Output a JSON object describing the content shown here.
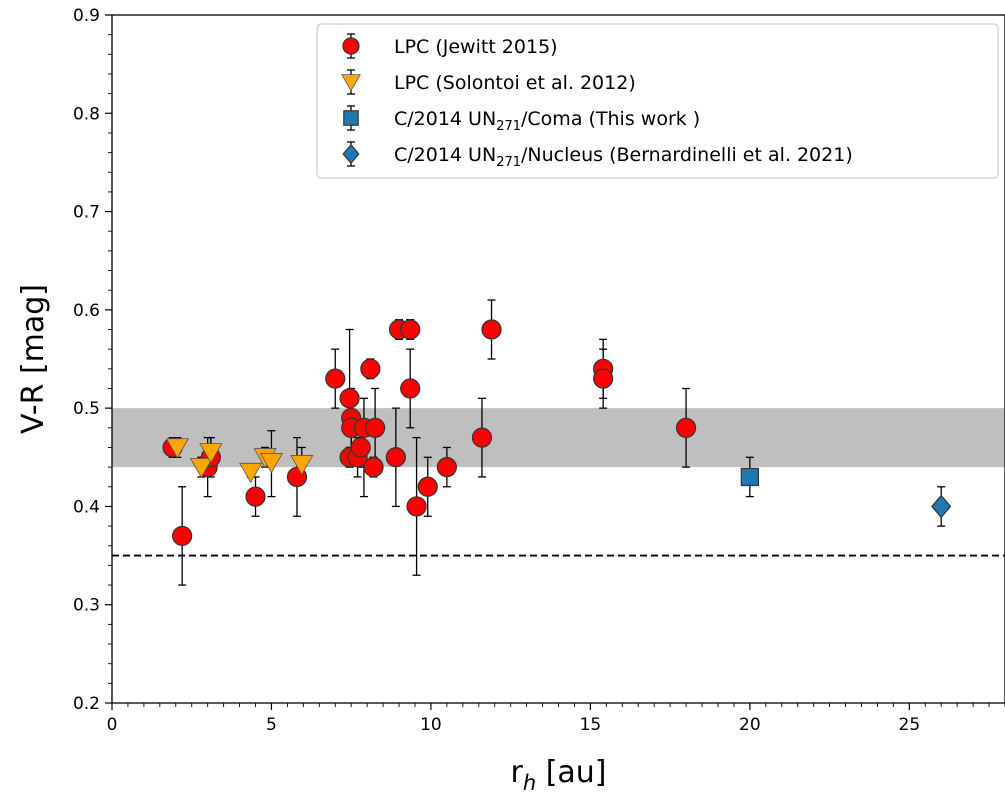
{
  "chart_data": {
    "type": "scatter",
    "xlabel": "r",
    "xlabel_sub": "h",
    "xlabel_unit": " [au]",
    "ylabel": "V-R [mag]",
    "xlim": [
      0,
      28
    ],
    "ylim": [
      0.2,
      0.9
    ],
    "xticks": [
      0,
      5,
      10,
      15,
      20,
      25
    ],
    "yticks": [
      0.2,
      0.3,
      0.4,
      0.5,
      0.6,
      0.7,
      0.8,
      0.9
    ],
    "x_minor_step": 0.5,
    "y_minor_step": 0.02,
    "grid": false,
    "legend_position": "top-right",
    "shaded_band": {
      "y_min": 0.44,
      "y_max": 0.5,
      "color": "#bfbfbf"
    },
    "reference_line": {
      "y": 0.35,
      "style": "dashed",
      "color": "#000000"
    },
    "series": [
      {
        "name": "LPC (Jewitt 2015)",
        "legend_label": {
          "pre": "LPC (Jewitt 2015)",
          "sub": "",
          "post": ""
        },
        "marker": "circle",
        "color": "#ff0000",
        "points": [
          {
            "x": 1.9,
            "y": 0.46,
            "lo": 0.45,
            "hi": 0.47
          },
          {
            "x": 2.2,
            "y": 0.37,
            "lo": 0.32,
            "hi": 0.42
          },
          {
            "x": 3.0,
            "y": 0.44,
            "lo": 0.41,
            "hi": 0.47
          },
          {
            "x": 3.1,
            "y": 0.45,
            "lo": 0.43,
            "hi": 0.47
          },
          {
            "x": 4.5,
            "y": 0.41,
            "lo": 0.39,
            "hi": 0.43
          },
          {
            "x": 5.8,
            "y": 0.43,
            "lo": 0.39,
            "hi": 0.47
          },
          {
            "x": 7.0,
            "y": 0.53,
            "lo": 0.5,
            "hi": 0.56
          },
          {
            "x": 7.45,
            "y": 0.51,
            "lo": 0.48,
            "hi": 0.58
          },
          {
            "x": 7.5,
            "y": 0.49,
            "lo": 0.46,
            "hi": 0.52
          },
          {
            "x": 7.5,
            "y": 0.48,
            "lo": 0.45,
            "hi": 0.51
          },
          {
            "x": 7.45,
            "y": 0.45,
            "lo": 0.44,
            "hi": 0.46
          },
          {
            "x": 7.7,
            "y": 0.45,
            "lo": 0.43,
            "hi": 0.47
          },
          {
            "x": 7.8,
            "y": 0.46,
            "lo": 0.44,
            "hi": 0.48
          },
          {
            "x": 7.9,
            "y": 0.48,
            "lo": 0.41,
            "hi": 0.51
          },
          {
            "x": 8.1,
            "y": 0.54,
            "lo": 0.53,
            "hi": 0.55
          },
          {
            "x": 8.2,
            "y": 0.44,
            "lo": 0.43,
            "hi": 0.45
          },
          {
            "x": 8.25,
            "y": 0.48,
            "lo": 0.44,
            "hi": 0.52
          },
          {
            "x": 8.9,
            "y": 0.45,
            "lo": 0.4,
            "hi": 0.5
          },
          {
            "x": 9.0,
            "y": 0.58,
            "lo": 0.57,
            "hi": 0.59
          },
          {
            "x": 9.35,
            "y": 0.58,
            "lo": 0.57,
            "hi": 0.59
          },
          {
            "x": 9.35,
            "y": 0.52,
            "lo": 0.48,
            "hi": 0.56
          },
          {
            "x": 9.55,
            "y": 0.4,
            "lo": 0.33,
            "hi": 0.47
          },
          {
            "x": 9.9,
            "y": 0.42,
            "lo": 0.39,
            "hi": 0.45
          },
          {
            "x": 10.5,
            "y": 0.44,
            "lo": 0.42,
            "hi": 0.46
          },
          {
            "x": 11.6,
            "y": 0.47,
            "lo": 0.43,
            "hi": 0.51
          },
          {
            "x": 11.9,
            "y": 0.58,
            "lo": 0.55,
            "hi": 0.61
          },
          {
            "x": 15.4,
            "y": 0.54,
            "lo": 0.51,
            "hi": 0.57
          },
          {
            "x": 15.4,
            "y": 0.53,
            "lo": 0.5,
            "hi": 0.56
          },
          {
            "x": 18.0,
            "y": 0.48,
            "lo": 0.44,
            "hi": 0.52
          }
        ]
      },
      {
        "name": "LPC (Solontoi et al. 2012)",
        "legend_label": {
          "pre": "LPC (Solontoi et al. 2012)",
          "sub": "",
          "post": ""
        },
        "marker": "triangle-down",
        "color": "#ffa500",
        "points": [
          {
            "x": 2.05,
            "y": 0.46,
            "lo": 0.45,
            "hi": 0.47
          },
          {
            "x": 2.8,
            "y": 0.44,
            "lo": 0.43,
            "hi": 0.45
          },
          {
            "x": 3.1,
            "y": 0.455,
            "lo": 0.44,
            "hi": 0.47
          },
          {
            "x": 4.35,
            "y": 0.435,
            "lo": 0.43,
            "hi": 0.44
          },
          {
            "x": 4.8,
            "y": 0.45,
            "lo": 0.44,
            "hi": 0.46
          },
          {
            "x": 5.0,
            "y": 0.445,
            "lo": 0.41,
            "hi": 0.477
          },
          {
            "x": 5.95,
            "y": 0.443,
            "lo": 0.43,
            "hi": 0.46
          }
        ]
      },
      {
        "name": "C/2014 UN271/Coma (This work )",
        "legend_label": {
          "pre": "C/2014 UN",
          "sub": "271",
          "post": "/Coma (This work )"
        },
        "marker": "square",
        "color": "#1f77b4",
        "points": [
          {
            "x": 20.0,
            "y": 0.43,
            "lo": 0.41,
            "hi": 0.45
          }
        ]
      },
      {
        "name": "C/2014 UN271/Nucleus (Bernardinelli et al. 2021)",
        "legend_label": {
          "pre": "C/2014 UN",
          "sub": "271",
          "post": "/Nucleus (Bernardinelli et al. 2021)"
        },
        "marker": "diamond",
        "color": "#1f77b4",
        "points": [
          {
            "x": 26.0,
            "y": 0.4,
            "lo": 0.38,
            "hi": 0.42
          }
        ]
      }
    ]
  }
}
